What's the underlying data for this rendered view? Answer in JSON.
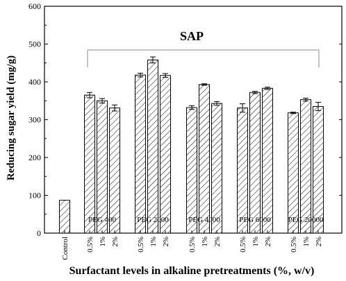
{
  "chart_data": {
    "type": "bar",
    "title": "",
    "xlabel": "Surfactant levels in alkaline pretreatments (%, w/v)",
    "ylabel": "Reducing sugar yield (mg/g)",
    "ylim": [
      0,
      600
    ],
    "yticks": [
      0,
      100,
      200,
      300,
      400,
      500,
      600
    ],
    "annotation": "SAP",
    "groups": [
      {
        "name": "",
        "bars": [
          {
            "label": "Control",
            "value": 87,
            "error": 0
          }
        ]
      },
      {
        "name": "PEG 400",
        "bars": [
          {
            "label": "0.5%",
            "value": 365,
            "error": 7
          },
          {
            "label": "1%",
            "value": 350,
            "error": 6
          },
          {
            "label": "2%",
            "value": 331,
            "error": 8
          }
        ]
      },
      {
        "name": "PEG 2000",
        "bars": [
          {
            "label": "0.5%",
            "value": 418,
            "error": 5
          },
          {
            "label": "1%",
            "value": 458,
            "error": 8
          },
          {
            "label": "2%",
            "value": 417,
            "error": 5
          }
        ]
      },
      {
        "name": "PEG 4000",
        "bars": [
          {
            "label": "0.5%",
            "value": 332,
            "error": 5
          },
          {
            "label": "1%",
            "value": 393,
            "error": 2
          },
          {
            "label": "2%",
            "value": 343,
            "error": 5
          }
        ]
      },
      {
        "name": "PEG 6000",
        "bars": [
          {
            "label": "0.5%",
            "value": 331,
            "error": 11
          },
          {
            "label": "1%",
            "value": 372,
            "error": 3
          },
          {
            "label": "2%",
            "value": 383,
            "error": 3
          }
        ]
      },
      {
        "name": "PEG 20000",
        "bars": [
          {
            "label": "0.5%",
            "value": 318,
            "error": 2
          },
          {
            "label": "1%",
            "value": 353,
            "error": 4
          },
          {
            "label": "2%",
            "value": 335,
            "error": 11
          }
        ]
      }
    ],
    "grid": false,
    "legend": "none"
  }
}
